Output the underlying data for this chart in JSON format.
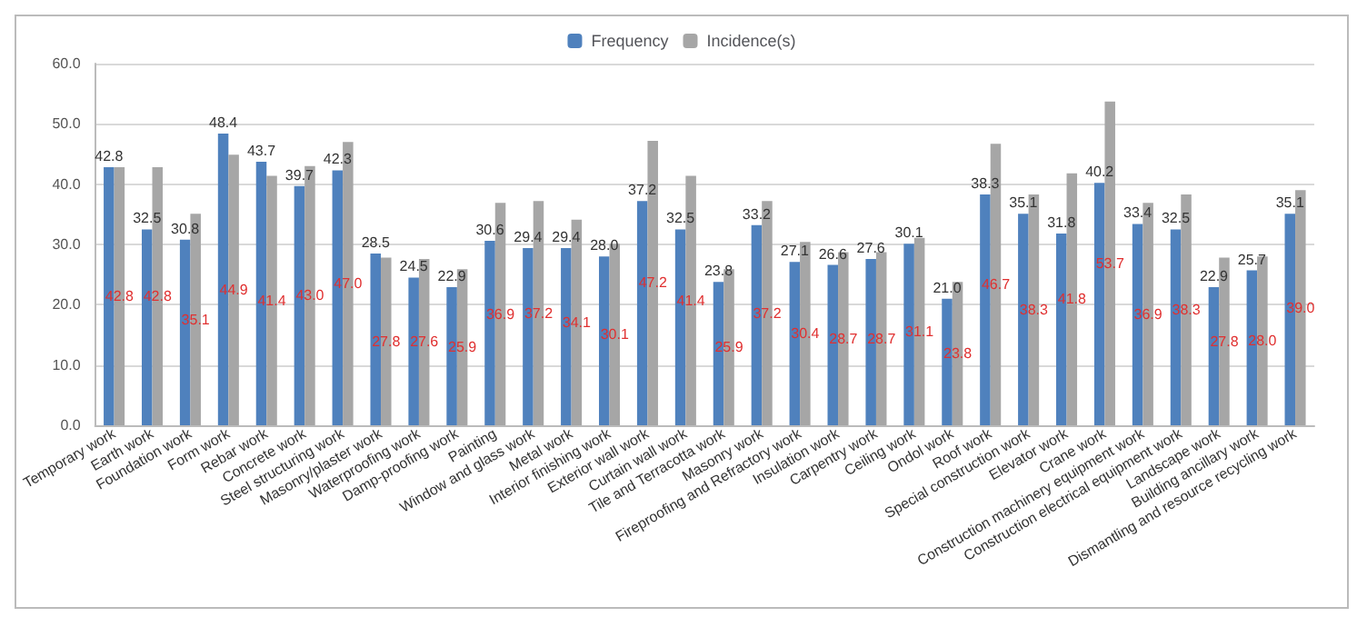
{
  "chart_data": {
    "type": "bar",
    "categories": [
      "Temporary work",
      "Earth work",
      "Foundation work",
      "Form work",
      "Rebar work",
      "Concrete work",
      "Steel structuring work",
      "Masonry/plaster work",
      "Waterproofing work",
      "Damp-proofing work",
      "Painting",
      "Window and glass work",
      "Metal work",
      "Interior finishing work",
      "Exterior wall work",
      "Curtain wall work",
      "Tile and Terracotta work",
      "Masonry work",
      "Fireproofing and Refractory work",
      "Insulation work",
      "Carpentry work",
      "Ceiling work",
      "Ondol work",
      "Roof work",
      "Special construction work",
      "Elevator work",
      "Crane work",
      "Construction machinery equipment work",
      "Construction electrical equipment work",
      "Landscape work",
      "Building ancillary work",
      "Dismantling and resource recycling work"
    ],
    "series": [
      {
        "name": "Frequency",
        "color": "#4f81bd",
        "values": [
          42.8,
          32.5,
          30.8,
          48.4,
          43.7,
          39.7,
          42.3,
          28.5,
          24.5,
          22.9,
          30.6,
          29.4,
          29.4,
          28.0,
          37.2,
          32.5,
          23.8,
          33.2,
          27.1,
          26.6,
          27.6,
          30.1,
          21.0,
          38.3,
          35.1,
          31.8,
          40.2,
          33.4,
          32.5,
          22.9,
          25.7,
          35.1
        ],
        "value_labels": [
          "42.8",
          "32.5",
          "30.8",
          "48.4",
          "43.7",
          "39.7",
          "42.3",
          "28.5",
          "24.5",
          "22.9",
          "30.6",
          "29.4",
          "29.4",
          "28.0",
          "37.2",
          "32.5",
          "23.8",
          "33.2",
          "27.1",
          "26.6",
          "27.6",
          "30.1",
          "21.0",
          "38.3",
          "35.1",
          "31.8",
          "40.2",
          "33.4",
          "32.5",
          "22.9",
          "25.7",
          "35.1"
        ]
      },
      {
        "name": "Incidence(s)",
        "color": "#a6a6a6",
        "values": [
          42.8,
          42.8,
          35.1,
          44.9,
          41.4,
          43.0,
          47.0,
          27.8,
          27.6,
          25.9,
          36.9,
          37.2,
          34.1,
          30.1,
          47.2,
          41.4,
          25.9,
          37.2,
          30.4,
          28.7,
          28.7,
          31.1,
          23.8,
          46.7,
          38.3,
          41.8,
          53.7,
          36.9,
          38.3,
          27.8,
          28.0,
          39.0
        ],
        "value_labels": [
          "42.8",
          "42.8",
          "35.1",
          "44.9",
          "41.4",
          "43.0",
          "47.0",
          "27.8",
          "27.6",
          "25.9",
          "36.9",
          "37.2",
          "34.1",
          "30.1",
          "47.2",
          "41.4",
          "25.9",
          "37.2",
          "30.4",
          "28.7",
          "28.7",
          "31.1",
          "23.8",
          "46.7",
          "38.3",
          "41.8",
          "53.7",
          "36.9",
          "38.3",
          "27.8",
          "28.0",
          "39.0"
        ]
      }
    ],
    "ylim": [
      0,
      60
    ],
    "yticks": [
      {
        "value": 0,
        "label": "0.0"
      },
      {
        "value": 10,
        "label": "10.0"
      },
      {
        "value": 20,
        "label": "20.0"
      },
      {
        "value": 30,
        "label": "30.0"
      },
      {
        "value": 40,
        "label": "40.0"
      },
      {
        "value": 50,
        "label": "50.0"
      },
      {
        "value": 60,
        "label": "60.0"
      }
    ],
    "grid": "y",
    "legend": "top"
  }
}
